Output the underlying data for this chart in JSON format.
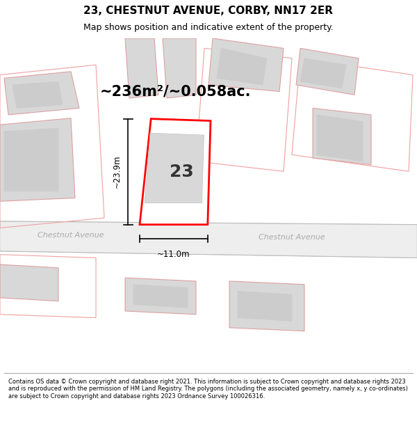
{
  "title": "23, CHESTNUT AVENUE, CORBY, NN17 2ER",
  "subtitle": "Map shows position and indicative extent of the property.",
  "area_text": "~236m²/~0.058ac.",
  "dim_width": "~11.0m",
  "dim_height": "~23.9m",
  "street_label_left": "Chestnut Avenue",
  "street_label_right": "Chestnut Avenue",
  "plot_number": "23",
  "footer": "Contains OS data © Crown copyright and database right 2021. This information is subject to Crown copyright and database rights 2023 and is reproduced with the permission of HM Land Registry. The polygons (including the associated geometry, namely x, y co-ordinates) are subject to Crown copyright and database rights 2023 Ordnance Survey 100026316.",
  "bg_color": "#ffffff",
  "highlight_fill": "#ffffff",
  "highlight_edge": "#ff0000",
  "title_color": "#000000",
  "text_color": "#000000",
  "footer_color": "#000000"
}
